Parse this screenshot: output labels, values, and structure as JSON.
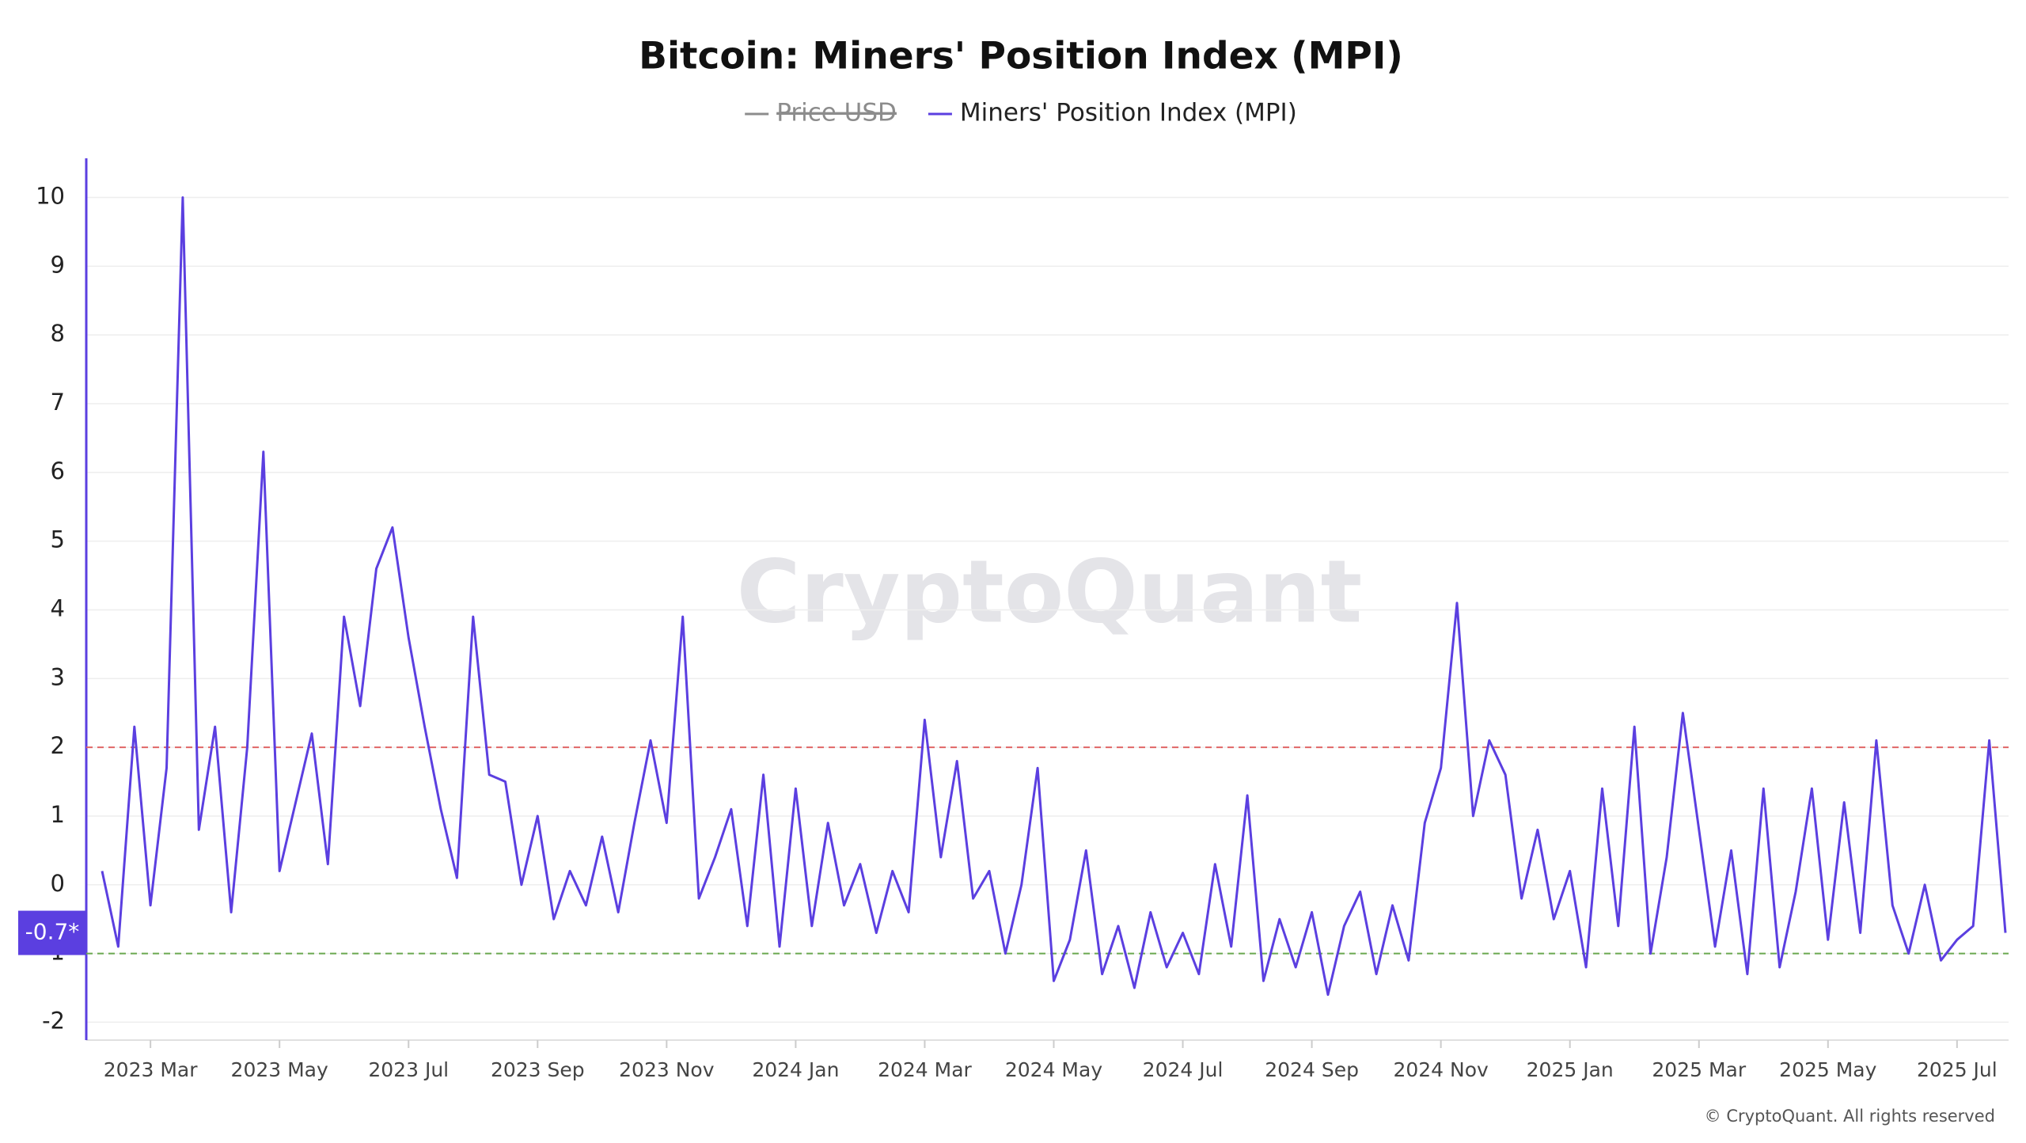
{
  "chart_data": {
    "type": "line",
    "title": "Bitcoin: Miners' Position Index (MPI)",
    "hidden_series": [
      {
        "name": "Price USD",
        "color": "#8c8c8c"
      }
    ],
    "categories": [
      null,
      null,
      null,
      "2023 Mar",
      null,
      null,
      null,
      null,
      null,
      null,
      null,
      "2023 May",
      null,
      null,
      null,
      null,
      null,
      null,
      null,
      "2023 Jul",
      null,
      null,
      null,
      null,
      null,
      null,
      null,
      "2023 Sep",
      null,
      null,
      null,
      null,
      null,
      null,
      null,
      "2023 Nov",
      null,
      null,
      null,
      null,
      null,
      null,
      null,
      "2024 Jan",
      null,
      null,
      null,
      null,
      null,
      null,
      null,
      "2024 Mar",
      null,
      null,
      null,
      null,
      null,
      null,
      null,
      "2024 May",
      null,
      null,
      null,
      null,
      null,
      null,
      null,
      "2024 Jul",
      null,
      null,
      null,
      null,
      null,
      null,
      null,
      "2024 Sep",
      null,
      null,
      null,
      null,
      null,
      null,
      null,
      "2024 Nov",
      null,
      null,
      null,
      null,
      null,
      null,
      null,
      "2025 Jan",
      null,
      null,
      null,
      null,
      null,
      null,
      null,
      "2025 Mar",
      null,
      null,
      null,
      null,
      null,
      null,
      null,
      "2025 May",
      null,
      null,
      null,
      null,
      null,
      null,
      null,
      "2025 Jul",
      null,
      null,
      null
    ],
    "series": [
      {
        "name": "Miners' Position Index (MPI)",
        "color": "#5b3fe0",
        "values": [
          0.2,
          -0.9,
          2.3,
          -0.3,
          1.7,
          10.0,
          0.8,
          2.3,
          -0.4,
          2.0,
          6.3,
          0.2,
          1.2,
          2.2,
          0.3,
          3.9,
          2.6,
          4.6,
          5.2,
          3.6,
          2.3,
          1.1,
          0.1,
          3.9,
          1.6,
          1.5,
          0.0,
          1.0,
          -0.5,
          0.2,
          -0.3,
          0.7,
          -0.4,
          0.9,
          2.1,
          0.9,
          3.9,
          -0.2,
          0.4,
          1.1,
          -0.6,
          1.6,
          -0.9,
          1.4,
          -0.6,
          0.9,
          -0.3,
          0.3,
          -0.7,
          0.2,
          -0.4,
          2.4,
          0.4,
          1.8,
          -0.2,
          0.2,
          -1.0,
          0.0,
          1.7,
          -1.4,
          -0.8,
          0.5,
          -1.3,
          -0.6,
          -1.5,
          -0.4,
          -1.2,
          -0.7,
          -1.3,
          0.3,
          -0.9,
          1.3,
          -1.4,
          -0.5,
          -1.2,
          -0.4,
          -1.6,
          -0.6,
          -0.1,
          -1.3,
          -0.3,
          -1.1,
          0.9,
          1.7,
          4.1,
          1.0,
          2.1,
          1.6,
          -0.2,
          0.8,
          -0.5,
          0.2,
          -1.2,
          1.4,
          -0.6,
          2.3,
          -1.0,
          0.4,
          2.5,
          0.8,
          -0.9,
          0.5,
          -1.3,
          1.4,
          -1.2,
          -0.1,
          1.4,
          -0.8,
          1.2,
          -0.7,
          2.1,
          -0.3,
          -1.0,
          0.0,
          -1.1,
          -0.8,
          -0.6,
          2.1,
          -0.7
        ]
      }
    ],
    "ylim": [
      -2.26,
      10.57
    ],
    "yticks": [
      -2,
      -1,
      0,
      1,
      2,
      3,
      4,
      5,
      6,
      7,
      8,
      9,
      10
    ],
    "grid": true,
    "reference_lines": [
      {
        "value": 2,
        "color": "#e06666"
      },
      {
        "value": -1,
        "color": "#6aa84f"
      }
    ],
    "current_marker": {
      "value": -0.7,
      "label": "-0.7*"
    },
    "watermark": "CryptoQuant",
    "footer": "© CryptoQuant. All rights reserved"
  }
}
